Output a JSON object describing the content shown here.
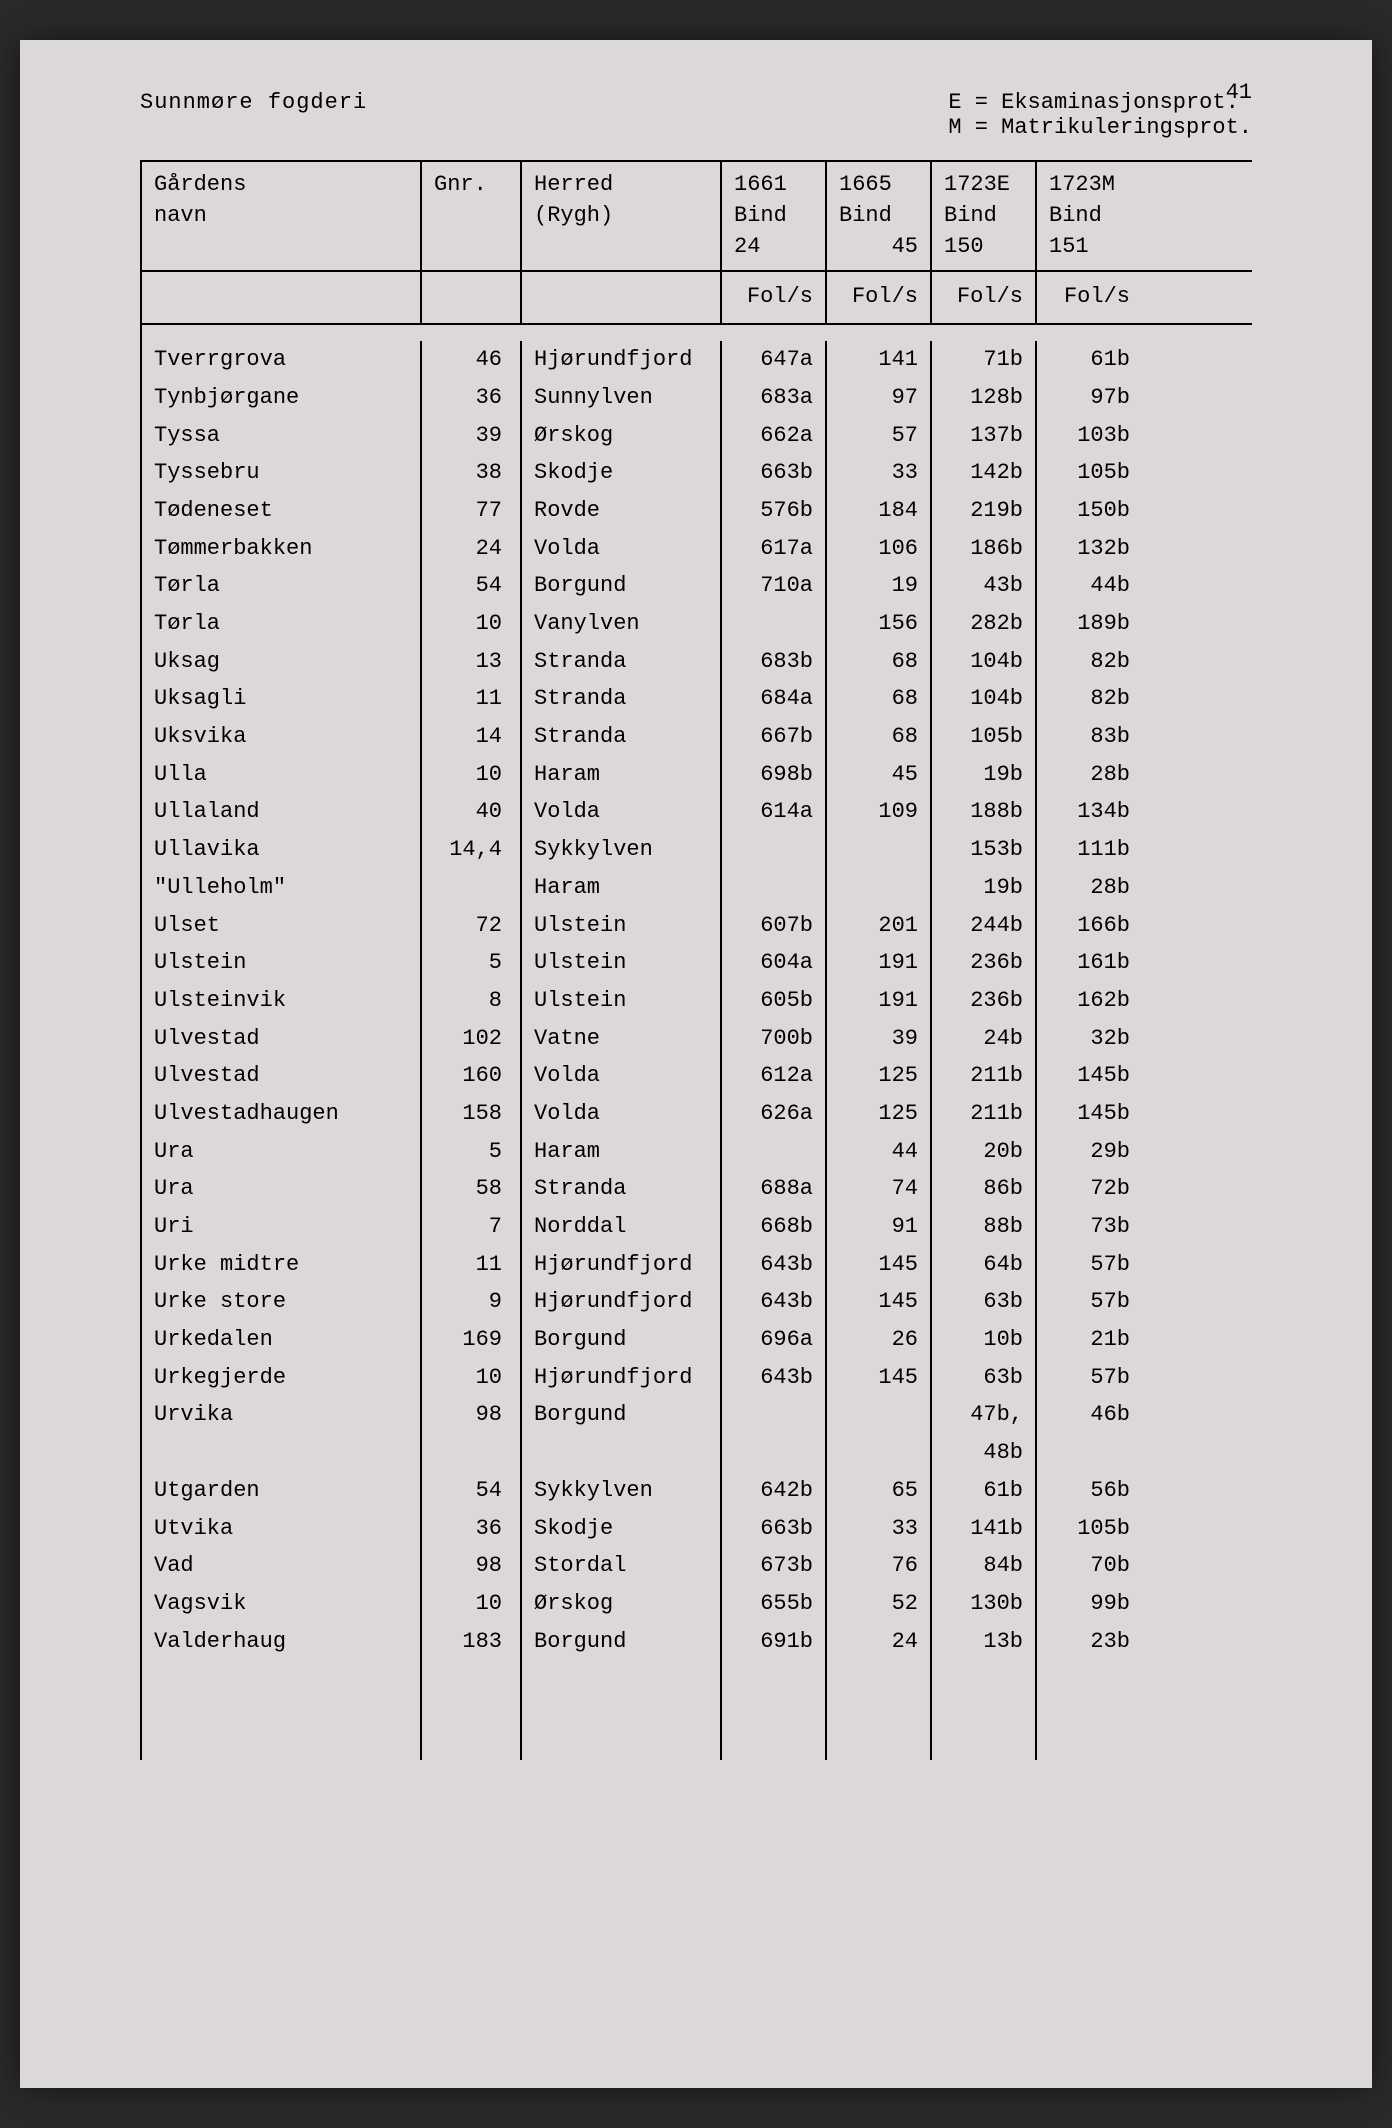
{
  "page_number": "41",
  "header": {
    "region": "Sunnmøre fogderi",
    "legend_e": "E = Eksaminasjonsprot.",
    "legend_m": "M = Matrikuleringsprot."
  },
  "columns": {
    "name_label_1": "Gårdens",
    "name_label_2": "navn",
    "gnr_label": "Gnr.",
    "herred_label_1": "Herred",
    "herred_label_2": "(Rygh)",
    "bind1661_label_1": "1661",
    "bind1661_label_2": "Bind",
    "bind1661_label_3": "24",
    "bind1665_label_1": "1665",
    "bind1665_label_2": "Bind",
    "bind1665_label_3": "45",
    "bind1723e_label_1": "1723E",
    "bind1723e_label_2": "Bind",
    "bind1723e_label_3": "150",
    "bind1723m_label_1": "1723M",
    "bind1723m_label_2": "Bind",
    "bind1723m_label_3": "151",
    "fols_label": "Fol/s"
  },
  "rows": [
    {
      "name": "Tverrgrova",
      "gnr": "46",
      "herred": "Hjørundfjord",
      "b1661": "647a",
      "b1665": "141",
      "b1723e": "71b",
      "b1723m": "61b"
    },
    {
      "name": "Tynbjørgane",
      "gnr": "36",
      "herred": "Sunnylven",
      "b1661": "683a",
      "b1665": "97",
      "b1723e": "128b",
      "b1723m": "97b"
    },
    {
      "name": "Tyssa",
      "gnr": "39",
      "herred": "Ørskog",
      "b1661": "662a",
      "b1665": "57",
      "b1723e": "137b",
      "b1723m": "103b"
    },
    {
      "name": "Tyssebru",
      "gnr": "38",
      "herred": "Skodje",
      "b1661": "663b",
      "b1665": "33",
      "b1723e": "142b",
      "b1723m": "105b"
    },
    {
      "name": "Tødeneset",
      "gnr": "77",
      "herred": "Rovde",
      "b1661": "576b",
      "b1665": "184",
      "b1723e": "219b",
      "b1723m": "150b"
    },
    {
      "name": "Tømmerbakken",
      "gnr": "24",
      "herred": "Volda",
      "b1661": "617a",
      "b1665": "106",
      "b1723e": "186b",
      "b1723m": "132b"
    },
    {
      "name": "Tørla",
      "gnr": "54",
      "herred": "Borgund",
      "b1661": "710a",
      "b1665": "19",
      "b1723e": "43b",
      "b1723m": "44b"
    },
    {
      "name": "Tørla",
      "gnr": "10",
      "herred": "Vanylven",
      "b1661": "",
      "b1665": "156",
      "b1723e": "282b",
      "b1723m": "189b"
    },
    {
      "name": "Uksag",
      "gnr": "13",
      "herred": "Stranda",
      "b1661": "683b",
      "b1665": "68",
      "b1723e": "104b",
      "b1723m": "82b"
    },
    {
      "name": "Uksagli",
      "gnr": "11",
      "herred": "Stranda",
      "b1661": "684a",
      "b1665": "68",
      "b1723e": "104b",
      "b1723m": "82b"
    },
    {
      "name": "Uksvika",
      "gnr": "14",
      "herred": "Stranda",
      "b1661": "667b",
      "b1665": "68",
      "b1723e": "105b",
      "b1723m": "83b"
    },
    {
      "name": "Ulla",
      "gnr": "10",
      "herred": "Haram",
      "b1661": "698b",
      "b1665": "45",
      "b1723e": "19b",
      "b1723m": "28b"
    },
    {
      "name": "Ullaland",
      "gnr": "40",
      "herred": "Volda",
      "b1661": "614a",
      "b1665": "109",
      "b1723e": "188b",
      "b1723m": "134b"
    },
    {
      "name": "Ullavika",
      "gnr": "14,4",
      "herred": "Sykkylven",
      "b1661": "",
      "b1665": "",
      "b1723e": "153b",
      "b1723m": "111b"
    },
    {
      "name": "\"Ulleholm\"",
      "gnr": "",
      "herred": "Haram",
      "b1661": "",
      "b1665": "",
      "b1723e": "19b",
      "b1723m": "28b"
    },
    {
      "name": "Ulset",
      "gnr": "72",
      "herred": "Ulstein",
      "b1661": "607b",
      "b1665": "201",
      "b1723e": "244b",
      "b1723m": "166b"
    },
    {
      "name": "Ulstein",
      "gnr": "5",
      "herred": "Ulstein",
      "b1661": "604a",
      "b1665": "191",
      "b1723e": "236b",
      "b1723m": "161b"
    },
    {
      "name": "Ulsteinvik",
      "gnr": "8",
      "herred": "Ulstein",
      "b1661": "605b",
      "b1665": "191",
      "b1723e": "236b",
      "b1723m": "162b"
    },
    {
      "name": "Ulvestad",
      "gnr": "102",
      "herred": "Vatne",
      "b1661": "700b",
      "b1665": "39",
      "b1723e": "24b",
      "b1723m": "32b"
    },
    {
      "name": "Ulvestad",
      "gnr": "160",
      "herred": "Volda",
      "b1661": "612a",
      "b1665": "125",
      "b1723e": "211b",
      "b1723m": "145b"
    },
    {
      "name": "Ulvestadhaugen",
      "gnr": "158",
      "herred": "Volda",
      "b1661": "626a",
      "b1665": "125",
      "b1723e": "211b",
      "b1723m": "145b"
    },
    {
      "name": "Ura",
      "gnr": "5",
      "herred": "Haram",
      "b1661": "",
      "b1665": "44",
      "b1723e": "20b",
      "b1723m": "29b"
    },
    {
      "name": "Ura",
      "gnr": "58",
      "herred": "Stranda",
      "b1661": "688a",
      "b1665": "74",
      "b1723e": "86b",
      "b1723m": "72b"
    },
    {
      "name": "Uri",
      "gnr": "7",
      "herred": "Norddal",
      "b1661": "668b",
      "b1665": "91",
      "b1723e": "88b",
      "b1723m": "73b"
    },
    {
      "name": "Urke midtre",
      "gnr": "11",
      "herred": "Hjørundfjord",
      "b1661": "643b",
      "b1665": "145",
      "b1723e": "64b",
      "b1723m": "57b"
    },
    {
      "name": "Urke store",
      "gnr": "9",
      "herred": "Hjørundfjord",
      "b1661": "643b",
      "b1665": "145",
      "b1723e": "63b",
      "b1723m": "57b"
    },
    {
      "name": "Urkedalen",
      "gnr": "169",
      "herred": "Borgund",
      "b1661": "696a",
      "b1665": "26",
      "b1723e": "10b",
      "b1723m": "21b"
    },
    {
      "name": "Urkegjerde",
      "gnr": "10",
      "herred": "Hjørundfjord",
      "b1661": "643b",
      "b1665": "145",
      "b1723e": "63b",
      "b1723m": "57b"
    },
    {
      "name": "Urvika",
      "gnr": "98",
      "herred": "Borgund",
      "b1661": "",
      "b1665": "",
      "b1723e": "47b,",
      "b1723m": "46b"
    },
    {
      "name": "",
      "gnr": "",
      "herred": "",
      "b1661": "",
      "b1665": "",
      "b1723e": "48b",
      "b1723m": ""
    },
    {
      "name": "Utgarden",
      "gnr": "54",
      "herred": "Sykkylven",
      "b1661": "642b",
      "b1665": "65",
      "b1723e": "61b",
      "b1723m": "56b"
    },
    {
      "name": "Utvika",
      "gnr": "36",
      "herred": "Skodje",
      "b1661": "663b",
      "b1665": "33",
      "b1723e": "141b",
      "b1723m": "105b"
    },
    {
      "name": "Vad",
      "gnr": "98",
      "herred": "Stordal",
      "b1661": "673b",
      "b1665": "76",
      "b1723e": "84b",
      "b1723m": "70b"
    },
    {
      "name": "Vagsvik",
      "gnr": "10",
      "herred": "Ørskog",
      "b1661": "655b",
      "b1665": "52",
      "b1723e": "130b",
      "b1723m": "99b"
    },
    {
      "name": "Valderhaug",
      "gnr": "183",
      "herred": "Borgund",
      "b1661": "691b",
      "b1665": "24",
      "b1723e": "13b",
      "b1723m": "23b"
    }
  ],
  "styling": {
    "background_color": "#dcd8da",
    "text_color": "#000000",
    "border_color": "#000000",
    "font_family": "Courier New",
    "base_font_size": 22
  }
}
